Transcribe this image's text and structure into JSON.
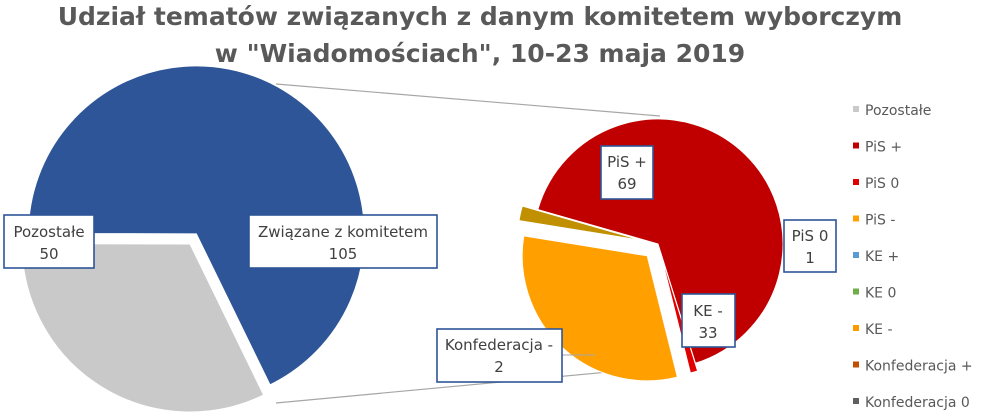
{
  "chart_data": {
    "type": "pie",
    "subtype": "pie-of-pie",
    "title": "Udział tematów związanych z danym komitetem wyborczym",
    "subtitle": "w \"Wiadomościach\", 10-23 maja 2019",
    "main_pie": {
      "slices": [
        {
          "label": "Pozostałe",
          "value": 50,
          "color": "#c9c9c9"
        },
        {
          "label": "Związane z komitetem",
          "value": 105,
          "color": "#2e5597"
        }
      ]
    },
    "secondary_pie": {
      "slices": [
        {
          "label": "PiS +",
          "value": 69,
          "color": "#c00000"
        },
        {
          "label": "PiS 0",
          "value": 1,
          "color": "#e00000"
        },
        {
          "label": "KE -",
          "value": 33,
          "color": "#ffa000"
        },
        {
          "label": "Konfederacja -",
          "value": 2,
          "color": "#c09000"
        }
      ]
    },
    "legend": {
      "placement": "right",
      "entries": [
        {
          "label": "Pozostałe",
          "color": "#c9c9c9"
        },
        {
          "label": "PiS +",
          "color": "#c00000"
        },
        {
          "label": "PiS 0",
          "color": "#e00000"
        },
        {
          "label": "PiS -",
          "color": "#ffa000"
        },
        {
          "label": "KE +",
          "color": "#5b9bd5"
        },
        {
          "label": "KE 0",
          "color": "#70ad47"
        },
        {
          "label": "KE -",
          "color": "#ff9900"
        },
        {
          "label": "Konfederacja +",
          "color": "#c05000"
        },
        {
          "label": "Konfederacja 0",
          "color": "#606060"
        }
      ]
    }
  }
}
